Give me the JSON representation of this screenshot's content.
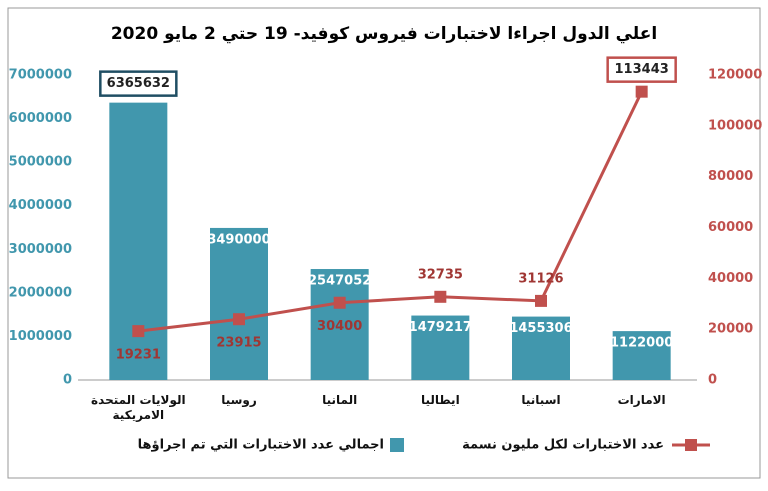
{
  "chart_data": {
    "type": "bar-line",
    "title": "اعلي الدول اجراءا لاختبارات فيروس كوفيد- 19 حتي 2 مايو 2020",
    "categories": [
      "الولايات المتحدة الامريكية",
      "روسيا",
      "المانيا",
      "ايطاليا",
      "اسبانيا",
      "الامارات"
    ],
    "series": [
      {
        "name": "اجمالي عدد الاختبارات التي تم اجراؤها",
        "type": "bar",
        "color": "#4197ad",
        "values": [
          6365632,
          3490000,
          2547052,
          1479217,
          1455306,
          1122000
        ]
      },
      {
        "name": "عدد الاختبارات لكل مليون نسمة",
        "type": "line",
        "axis": "y2",
        "color": "#c0504d",
        "values": [
          19231,
          23915,
          30400,
          32735,
          31126,
          113443
        ]
      }
    ],
    "ylim": [
      0,
      7000000
    ],
    "yticks": [
      0,
      1000000,
      2000000,
      3000000,
      4000000,
      5000000,
      6000000,
      7000000
    ],
    "y2lim": [
      0,
      120000
    ],
    "y2ticks": [
      0,
      20000,
      40000,
      60000,
      80000,
      100000,
      120000
    ],
    "legend": "bottom"
  }
}
